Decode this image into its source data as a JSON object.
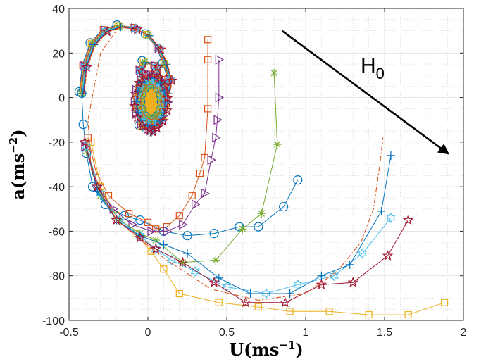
{
  "chart_data": {
    "type": "line",
    "title": "",
    "xlabel": {
      "main": "U(ms",
      "exp": "−1",
      "close": ")"
    },
    "ylabel": {
      "main": "a(ms",
      "exp": "−2",
      "close": ")"
    },
    "xlim": [
      -0.5,
      2
    ],
    "ylim": [
      -100,
      40
    ],
    "xticks": [
      -0.5,
      0,
      0.5,
      1,
      1.5,
      2
    ],
    "xtick_labels": [
      "-0.5",
      "0",
      "0.5",
      "1",
      "1.5",
      "2"
    ],
    "yticks": [
      -100,
      -80,
      -60,
      -40,
      -20,
      0,
      20,
      40
    ],
    "ytick_labels": [
      "-100",
      "-80",
      "-60",
      "-40",
      "-20",
      "0",
      "20",
      "40"
    ],
    "grid": true,
    "minor_grid": true,
    "annotation": {
      "text": "H",
      "subscript": "0",
      "arrow_from": [
        0.85,
        30
      ],
      "arrow_to": [
        1.9,
        -25
      ]
    },
    "spiral_path": [
      [
        -0.42,
        2
      ],
      [
        -0.4,
        14
      ],
      [
        -0.35,
        24
      ],
      [
        -0.27,
        30
      ],
      [
        -0.18,
        32
      ],
      [
        -0.08,
        31
      ],
      [
        0.0,
        28
      ],
      [
        0.07,
        22
      ],
      [
        0.11,
        15
      ],
      [
        0.14,
        8
      ],
      [
        0.12,
        2
      ],
      [
        0.05,
        1
      ],
      [
        -0.02,
        6
      ],
      [
        -0.05,
        12
      ],
      [
        -0.02,
        16
      ],
      [
        0.05,
        14
      ],
      [
        0.1,
        6
      ],
      [
        0.11,
        -2
      ],
      [
        0.08,
        -10
      ],
      [
        0.02,
        -15
      ],
      [
        -0.04,
        -13
      ],
      [
        -0.06,
        -5
      ],
      [
        -0.04,
        4
      ],
      [
        0.02,
        10
      ],
      [
        0.08,
        8
      ],
      [
        0.1,
        0
      ],
      [
        0.08,
        -8
      ],
      [
        0.02,
        -12
      ],
      [
        -0.03,
        -8
      ],
      [
        -0.04,
        0
      ]
    ],
    "inner_cluster": {
      "center": [
        0.02,
        -2
      ],
      "rx": 0.11,
      "ry": 13
    },
    "series": [
      {
        "color": "#0072BD",
        "marker": "circle",
        "points": [
          [
            -0.42,
            2
          ],
          [
            -0.41,
            -12
          ],
          [
            -0.39,
            -25
          ],
          [
            -0.35,
            -40
          ],
          [
            -0.27,
            -48
          ],
          [
            -0.15,
            -53
          ],
          [
            -0.05,
            -55
          ],
          [
            0.1,
            -60
          ],
          [
            0.25,
            -62
          ],
          [
            0.42,
            -61
          ],
          [
            0.58,
            -58
          ],
          [
            0.7,
            -58
          ],
          [
            0.86,
            -49
          ],
          [
            0.95,
            -37
          ]
        ]
      },
      {
        "color": "#D95319",
        "marker": "square",
        "points": [
          [
            -0.38,
            -18
          ],
          [
            -0.33,
            -33
          ],
          [
            -0.25,
            -44
          ],
          [
            -0.12,
            -52
          ],
          [
            0.0,
            -56
          ],
          [
            0.05,
            -59
          ],
          [
            0.12,
            -58
          ],
          [
            0.2,
            -53
          ],
          [
            0.28,
            -44
          ],
          [
            0.33,
            -34
          ],
          [
            0.36,
            -27
          ],
          [
            0.38,
            -5
          ],
          [
            0.38,
            17
          ],
          [
            0.38,
            26
          ]
        ]
      },
      {
        "color": "#EDB120",
        "marker": "square",
        "points": [
          [
            -0.36,
            -20
          ],
          [
            -0.3,
            -40
          ],
          [
            -0.2,
            -53
          ],
          [
            -0.08,
            -61
          ],
          [
            0.02,
            -69
          ],
          [
            0.1,
            -77
          ],
          [
            0.2,
            -88
          ],
          [
            0.45,
            -92
          ],
          [
            0.7,
            -94
          ],
          [
            0.9,
            -96
          ],
          [
            1.15,
            -96
          ],
          [
            1.4,
            -97.5
          ],
          [
            1.65,
            -97.5
          ],
          [
            1.88,
            -92
          ]
        ]
      },
      {
        "color": "#7E2F8E",
        "marker": "triangle-right",
        "points": [
          [
            -0.4,
            -22
          ],
          [
            -0.32,
            -40
          ],
          [
            -0.22,
            -50
          ],
          [
            -0.1,
            -57
          ],
          [
            0.02,
            -60
          ],
          [
            0.12,
            -60
          ],
          [
            0.22,
            -57
          ],
          [
            0.3,
            -48
          ],
          [
            0.36,
            -43
          ],
          [
            0.4,
            -28
          ],
          [
            0.43,
            -18
          ],
          [
            0.44,
            -10
          ],
          [
            0.45,
            0
          ],
          [
            0.45,
            17
          ]
        ]
      },
      {
        "color": "#77AC30",
        "marker": "asterisk",
        "points": [
          [
            -0.39,
            -24
          ],
          [
            -0.3,
            -44
          ],
          [
            -0.18,
            -55
          ],
          [
            -0.05,
            -61
          ],
          [
            0.05,
            -64
          ],
          [
            0.22,
            -74
          ],
          [
            0.43,
            -73
          ],
          [
            0.6,
            -59
          ],
          [
            0.72,
            -52
          ],
          [
            0.82,
            -21
          ],
          [
            0.8,
            11
          ]
        ]
      },
      {
        "color": "#4DBEEE",
        "marker": "hexagram",
        "points": [
          [
            -0.39,
            -22
          ],
          [
            -0.3,
            -43
          ],
          [
            -0.18,
            -55
          ],
          [
            -0.05,
            -62
          ],
          [
            0.05,
            -68
          ],
          [
            0.15,
            -73
          ],
          [
            0.3,
            -78
          ],
          [
            0.5,
            -85
          ],
          [
            0.75,
            -88
          ],
          [
            0.95,
            -84
          ],
          [
            1.18,
            -80
          ],
          [
            1.36,
            -70
          ],
          [
            1.54,
            -54
          ]
        ]
      },
      {
        "color": "#0072BD",
        "marker": "plus",
        "points": [
          [
            -0.4,
            -20
          ],
          [
            -0.32,
            -42
          ],
          [
            -0.2,
            -55
          ],
          [
            -0.05,
            -62
          ],
          [
            0.1,
            -66
          ],
          [
            0.25,
            -70
          ],
          [
            0.45,
            -81
          ],
          [
            0.65,
            -88
          ],
          [
            0.9,
            -88
          ],
          [
            1.1,
            -80
          ],
          [
            1.28,
            -75
          ],
          [
            1.48,
            -51
          ],
          [
            1.54,
            -26
          ]
        ]
      },
      {
        "color": "#A2142F",
        "marker": "pentagram",
        "points": [
          [
            -0.4,
            -20
          ],
          [
            -0.32,
            -40
          ],
          [
            -0.2,
            -55
          ],
          [
            -0.05,
            -63
          ],
          [
            0.05,
            -68
          ],
          [
            0.22,
            -74
          ],
          [
            0.42,
            -83
          ],
          [
            0.62,
            -92
          ],
          [
            0.87,
            -92
          ],
          [
            1.1,
            -84
          ],
          [
            1.3,
            -83
          ],
          [
            1.52,
            -71
          ],
          [
            1.65,
            -55
          ]
        ]
      },
      {
        "color": "#D95319",
        "marker": "none",
        "dash": "7 3 2 3",
        "points": [
          [
            -0.18,
            32
          ],
          [
            -0.3,
            20
          ],
          [
            -0.38,
            -10
          ],
          [
            -0.36,
            -32
          ],
          [
            -0.2,
            -55
          ],
          [
            0.1,
            -72
          ],
          [
            0.4,
            -86
          ],
          [
            0.7,
            -91
          ],
          [
            1.0,
            -88
          ],
          [
            1.2,
            -78
          ],
          [
            1.35,
            -65
          ],
          [
            1.43,
            -50
          ],
          [
            1.47,
            -30
          ],
          [
            1.49,
            -18
          ]
        ]
      }
    ]
  }
}
